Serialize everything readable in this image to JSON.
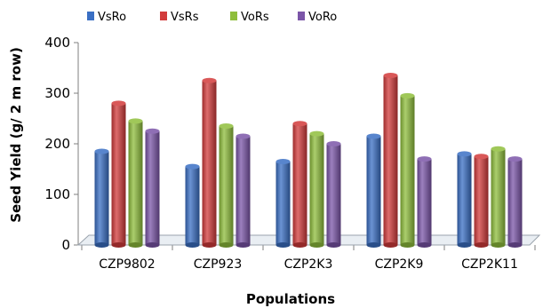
{
  "chart_data": {
    "type": "bar",
    "title": "",
    "xlabel": "Populations",
    "ylabel": "Seed Yield (g/ 2 m row)",
    "ylim": [
      0,
      400
    ],
    "yticks": [
      0,
      100,
      200,
      300,
      400
    ],
    "grid": false,
    "legend_position": "top",
    "categories": [
      "CZP9802",
      "CZP923",
      "CZP2K3",
      "CZP2K9",
      "CZP2K11"
    ],
    "series": [
      {
        "name": "VsRo",
        "color": "#3a6fc4",
        "values": [
          185,
          155,
          165,
          215,
          180
        ]
      },
      {
        "name": "VsRs",
        "color": "#d23b3b",
        "values": [
          280,
          325,
          240,
          335,
          175
        ]
      },
      {
        "name": "VoRs",
        "color": "#8fbe3c",
        "values": [
          245,
          235,
          220,
          295,
          190
        ]
      },
      {
        "name": "VoRo",
        "color": "#7b55a8",
        "values": [
          225,
          215,
          200,
          170,
          170
        ]
      }
    ]
  }
}
